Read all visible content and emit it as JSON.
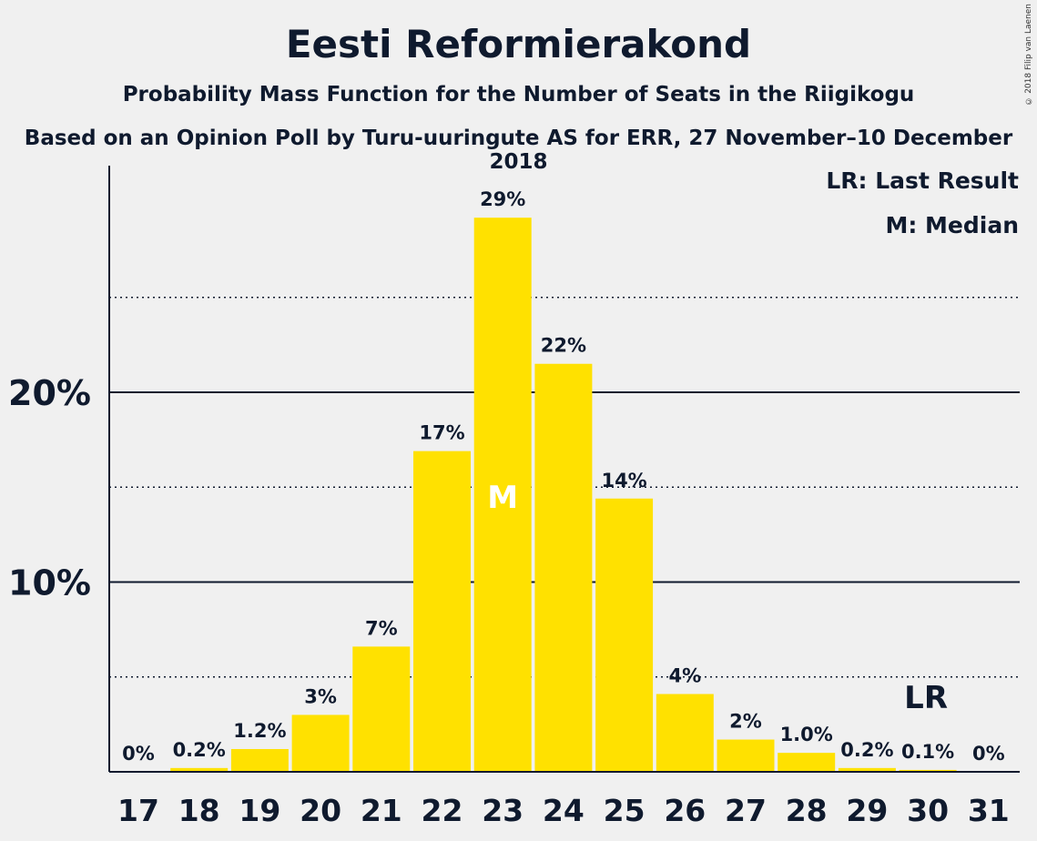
{
  "header": {
    "title": "Eesti Reformierakond",
    "subtitle": "Probability Mass Function for the Number of Seats in the Riigikogu",
    "subtitle2": "Based on an Opinion Poll by Turu-uuringute AS for ERR, 27 November–10 December 2018",
    "copyright": "© 2018 Filip van Laenen"
  },
  "legend": {
    "last_result": "LR: Last Result",
    "median": "M: Median"
  },
  "colors": {
    "bar": "#ffe100",
    "text": "#0f1a2e",
    "background": "#f0f0f0"
  },
  "chart_data": {
    "type": "bar",
    "categories": [
      "17",
      "18",
      "19",
      "20",
      "21",
      "22",
      "23",
      "24",
      "25",
      "26",
      "27",
      "28",
      "29",
      "30",
      "31"
    ],
    "values": [
      0,
      0.2,
      1.2,
      3,
      6.6,
      16.9,
      29.2,
      21.5,
      14.4,
      4.1,
      1.7,
      1.0,
      0.2,
      0.1,
      0
    ],
    "value_labels": [
      "0%",
      "0.2%",
      "1.2%",
      "3%",
      "7%",
      "17%",
      "29%",
      "22%",
      "14%",
      "4%",
      "2%",
      "1.0%",
      "0.2%",
      "0.1%",
      "0%"
    ],
    "y_ticks": [
      {
        "value": 10,
        "label": "10%"
      },
      {
        "value": 20,
        "label": "20%"
      }
    ],
    "y_minor_gridlines": [
      5,
      15,
      25
    ],
    "ylim": [
      0,
      32
    ],
    "median_category": "23",
    "median_label": "M",
    "last_result_category": "30",
    "last_result_label": "LR"
  }
}
